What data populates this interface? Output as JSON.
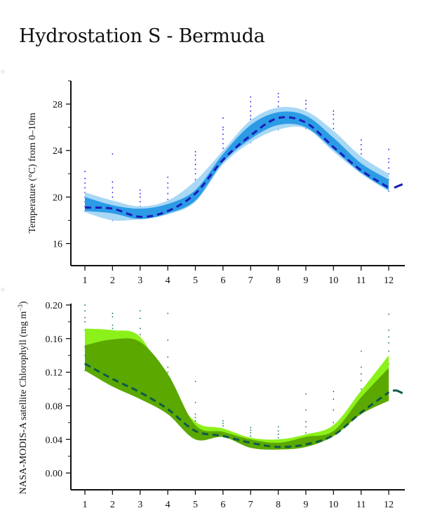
{
  "title": "Hydrostation S - Bermuda",
  "colors": {
    "temp_outer": "#a8d8f5",
    "temp_inner": "#2b9be6",
    "temp_mean": "#1b1bb8",
    "temp_points": "#2222ee",
    "chl_outer": "#8cf01a",
    "chl_inner": "#5aa800",
    "chl_mean": "#0d5a4a",
    "chl_points": "#1f7a5a"
  },
  "chart_data": [
    {
      "type": "area",
      "title": "",
      "xlabel": "",
      "ylabel": "Temperature (°C) from 0–10m",
      "x_ticks": [
        "1",
        "2",
        "3",
        "4",
        "5",
        "6",
        "7",
        "8",
        "9",
        "10",
        "11",
        "12"
      ],
      "y_ticks": [
        "16",
        "20",
        "24",
        "28"
      ],
      "y_tick_values": [
        16,
        20,
        24,
        28
      ],
      "xlim": [
        0.5,
        12.6
      ],
      "ylim": [
        14.1,
        30
      ],
      "grid": false,
      "x": [
        1,
        2,
        3,
        4,
        5,
        6,
        7,
        8,
        9,
        10,
        11,
        12
      ],
      "mean": [
        19.1,
        19.0,
        18.3,
        18.8,
        20.3,
        23.2,
        25.3,
        26.8,
        26.4,
        24.3,
        22.3,
        20.8
      ],
      "mean_extension": {
        "x": [
          12.2,
          12.5
        ],
        "y": [
          20.8,
          21.1
        ]
      },
      "outer_band": {
        "low": [
          18.7,
          18.0,
          18.1,
          18.5,
          19.6,
          22.8,
          24.7,
          25.8,
          25.9,
          23.9,
          22.0,
          20.5
        ],
        "high": [
          20.4,
          19.7,
          19.2,
          19.7,
          21.4,
          24.0,
          26.6,
          27.7,
          27.4,
          25.7,
          23.5,
          22.0
        ]
      },
      "inner_band": {
        "low": [
          18.8,
          18.6,
          18.1,
          18.6,
          19.7,
          23.0,
          25.0,
          26.2,
          26.0,
          24.1,
          22.1,
          20.6
        ],
        "high": [
          20.0,
          19.3,
          19.0,
          19.4,
          20.6,
          23.7,
          26.2,
          27.3,
          27.0,
          25.1,
          22.9,
          21.5
        ]
      },
      "points": [
        [
          18.8,
          19.2,
          19.6,
          20.0,
          20.4,
          20.8,
          21.2,
          21.6,
          22.2
        ],
        [
          18.0,
          19.6,
          20.0,
          20.4,
          20.8,
          21.3,
          23.7
        ],
        [
          18.3,
          18.8,
          19.2,
          19.6,
          20.0,
          20.3,
          20.6
        ],
        [
          18.6,
          19.2,
          19.8,
          20.3,
          20.8,
          21.2,
          21.7
        ],
        [
          19.7,
          21.5,
          22.0,
          22.4,
          22.8,
          23.2,
          23.6,
          23.9
        ],
        [
          23.0,
          24.2,
          24.6,
          25.0,
          25.4,
          25.8,
          26.0,
          26.8
        ],
        [
          24.7,
          26.7,
          27.0,
          27.4,
          27.8,
          28.2,
          28.6
        ],
        [
          25.8,
          27.4,
          27.8,
          28.2,
          28.6,
          28.9
        ],
        [
          25.9,
          27.2,
          27.6,
          28.0,
          28.3
        ],
        [
          24.0,
          25.9,
          26.3,
          26.7,
          27.1,
          27.4
        ],
        [
          22.1,
          23.7,
          24.1,
          24.5,
          24.9
        ],
        [
          20.5,
          21.5,
          22.0,
          22.5,
          23.0,
          23.3,
          24.1
        ]
      ]
    },
    {
      "type": "area",
      "title": "",
      "xlabel": "",
      "ylabel": "NASA-MODIS-A satellite Chlorophyll (mg m−3)",
      "ylabel_main": "NASA-MODIS-A satellite Chlorophyll (mg m",
      "ylabel_sup": "−3",
      "ylabel_end": ")",
      "x_ticks": [
        "1",
        "2",
        "3",
        "4",
        "5",
        "6",
        "7",
        "8",
        "9",
        "10",
        "11",
        "12"
      ],
      "y_ticks": [
        "0.00",
        "0.04",
        "0.08",
        "0.12",
        "0.16",
        "0.20"
      ],
      "y_tick_values": [
        0,
        0.04,
        0.08,
        0.12,
        0.16,
        0.2
      ],
      "xlim": [
        0.5,
        12.6
      ],
      "ylim": [
        -0.02,
        0.2
      ],
      "grid": false,
      "x": [
        1,
        2,
        3,
        4,
        5,
        6,
        7,
        8,
        9,
        10,
        11,
        12
      ],
      "mean": [
        0.13,
        0.112,
        0.096,
        0.076,
        0.05,
        0.044,
        0.036,
        0.031,
        0.034,
        0.045,
        0.072,
        0.096
      ],
      "mean_extension": {
        "x": [
          12.15,
          12.3,
          12.5
        ],
        "y": [
          0.098,
          0.098,
          0.095
        ]
      },
      "outer_band": {
        "low": [
          0.122,
          0.103,
          0.088,
          0.07,
          0.04,
          0.043,
          0.03,
          0.028,
          0.031,
          0.044,
          0.07,
          0.086
        ],
        "high": [
          0.172,
          0.17,
          0.162,
          0.105,
          0.061,
          0.053,
          0.042,
          0.04,
          0.046,
          0.057,
          0.098,
          0.14
        ]
      },
      "inner_band": {
        "low": [
          0.122,
          0.103,
          0.088,
          0.07,
          0.04,
          0.043,
          0.03,
          0.028,
          0.031,
          0.044,
          0.07,
          0.086
        ],
        "high": [
          0.152,
          0.159,
          0.156,
          0.118,
          0.057,
          0.049,
          0.04,
          0.036,
          0.043,
          0.05,
          0.09,
          0.125
        ]
      },
      "points": [
        [
          0.122,
          0.13,
          0.14,
          0.15,
          0.17,
          0.18,
          0.185,
          0.193,
          0.2
        ],
        [
          0.112,
          0.172,
          0.176,
          0.186,
          0.19
        ],
        [
          0.096,
          0.16,
          0.165,
          0.172,
          0.184,
          0.193
        ],
        [
          0.076,
          0.12,
          0.126,
          0.138,
          0.158,
          0.19
        ],
        [
          0.05,
          0.062,
          0.066,
          0.07,
          0.084,
          0.109
        ],
        [
          0.044,
          0.052,
          0.056,
          0.059,
          0.062
        ],
        [
          0.036,
          0.044,
          0.048,
          0.051,
          0.054
        ],
        [
          0.031,
          0.042,
          0.046,
          0.05,
          0.055
        ],
        [
          0.034,
          0.048,
          0.055,
          0.061,
          0.075,
          0.094
        ],
        [
          0.045,
          0.052,
          0.06,
          0.075,
          0.088,
          0.097
        ],
        [
          0.072,
          0.1,
          0.11,
          0.118,
          0.126,
          0.145
        ],
        [
          0.096,
          0.13,
          0.145,
          0.155,
          0.162,
          0.17,
          0.189
        ]
      ]
    }
  ]
}
